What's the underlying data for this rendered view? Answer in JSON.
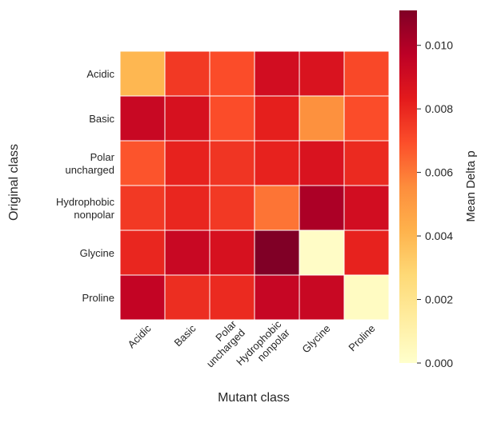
{
  "chart_data": {
    "type": "heatmap",
    "xlabel": "Mutant class",
    "ylabel": "Original class",
    "x_categories": [
      [
        "Acidic"
      ],
      [
        "Basic"
      ],
      [
        "Polar",
        "uncharged"
      ],
      [
        "Hydrophobic",
        "nonpolar"
      ],
      [
        "Glycine"
      ],
      [
        "Proline"
      ]
    ],
    "y_categories": [
      [
        "Acidic"
      ],
      [
        "Basic"
      ],
      [
        "Polar",
        "uncharged"
      ],
      [
        "Hydrophobic",
        "nonpolar"
      ],
      [
        "Glycine"
      ],
      [
        "Proline"
      ]
    ],
    "values": [
      [
        0.004,
        0.0075,
        0.007,
        0.009,
        0.0087,
        0.0071
      ],
      [
        0.0093,
        0.0088,
        0.007,
        0.0082,
        0.0054,
        0.007
      ],
      [
        0.0068,
        0.0081,
        0.0076,
        0.0081,
        0.0087,
        0.0079
      ],
      [
        0.0075,
        0.008,
        0.0075,
        0.0061,
        0.0101,
        0.009
      ],
      [
        0.008,
        0.0093,
        0.0088,
        0.0111,
        0.0002,
        0.0081
      ],
      [
        0.0095,
        0.0078,
        0.0079,
        0.0094,
        0.0093,
        0.0003
      ]
    ],
    "colorbar": {
      "label": "Mean Delta p",
      "range": [
        0.0,
        0.0111
      ],
      "ticks": [
        0.0,
        0.002,
        0.004,
        0.006,
        0.008,
        0.01
      ],
      "tick_labels": [
        "0.000",
        "0.002",
        "0.004",
        "0.006",
        "0.008",
        "0.010"
      ]
    },
    "colormap": "YlOrRd",
    "colormap_stops": [
      "#ffffcc",
      "#ffeda0",
      "#fed976",
      "#feb24c",
      "#fd8d3c",
      "#fc4e2a",
      "#e31a1c",
      "#bd0026",
      "#800026"
    ],
    "cell_border_color": "#ffffff",
    "grid": false
  }
}
